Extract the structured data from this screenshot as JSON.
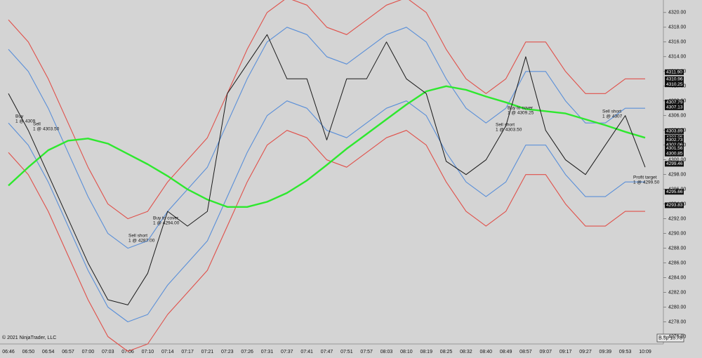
{
  "chart_data": {
    "type": "line",
    "categories": [
      "06:46",
      "06:50",
      "06:54",
      "06:57",
      "07:00",
      "07:03",
      "07:06",
      "07:10",
      "07:14",
      "07:17",
      "07:21",
      "07:23",
      "07:26",
      "07:31",
      "07:37",
      "07:41",
      "07:47",
      "07:51",
      "07:57",
      "08:03",
      "08:10",
      "08:19",
      "08:25",
      "08:32",
      "08:40",
      "08:49",
      "08:57",
      "09:07",
      "09:17",
      "09:27",
      "09:39",
      "09:53",
      "10:09"
    ],
    "series": [
      {
        "color": "#e0504a",
        "values": [
          4319,
          4316,
          4311,
          4305,
          4299,
          4294,
          4292,
          4293,
          4297,
          4300,
          4303,
          4309,
          4315,
          4320,
          4322,
          4321,
          4318,
          4317,
          4319,
          4321,
          4322,
          4320,
          4315,
          4311,
          4309,
          4311,
          4316,
          4316,
          4312,
          4309,
          4309,
          4311,
          4311
        ]
      },
      {
        "color": "#e0504a",
        "values": [
          4301,
          4298,
          4293,
          4287,
          4281,
          4276,
          4274,
          4275,
          4279,
          4282,
          4285,
          4291,
          4297,
          4302,
          4304,
          4303,
          4300,
          4299,
          4301,
          4303,
          4304,
          4302,
          4297,
          4293,
          4291,
          4293,
          4298,
          4298,
          4294,
          4291,
          4291,
          4293,
          4293
        ]
      },
      {
        "color": "#5a8fd8",
        "values": [
          4315,
          4312,
          4307,
          4301,
          4295,
          4290,
          4288,
          4289,
          4293,
          4296,
          4299,
          4305,
          4311,
          4316,
          4318,
          4317,
          4314,
          4313,
          4315,
          4317,
          4318,
          4316,
          4311,
          4307,
          4305,
          4307,
          4312,
          4312,
          4308,
          4305,
          4305,
          4307,
          4307
        ]
      },
      {
        "color": "#5a8fd8",
        "values": [
          4305,
          4302,
          4297,
          4291,
          4285,
          4280,
          4278,
          4279,
          4283,
          4286,
          4289,
          4295,
          4301,
          4306,
          4308,
          4307,
          4304,
          4303,
          4305,
          4307,
          4308,
          4306,
          4301,
          4297,
          4295,
          4297,
          4302,
          4302,
          4298,
          4295,
          4295,
          4297,
          4297
        ]
      },
      {
        "color": "#2ee82e",
        "values": [
          4296.5,
          4299,
          4301.3,
          4302.6,
          4302.9,
          4302.2,
          4300.8,
          4299.4,
          4297.8,
          4296,
          4294.6,
          4293.6,
          4293.6,
          4294.3,
          4295.5,
          4297.2,
          4299.3,
          4301.5,
          4303.5,
          4305.5,
          4307.5,
          4309.3,
          4310,
          4309.5,
          4308.6,
          4307.8,
          4306.9,
          4306.6,
          4306.3,
          4305.5,
          4304.7,
          4303.8,
          4303
        ]
      },
      {
        "color": "#1a1a1a",
        "values": [
          4309,
          4304,
          4298,
          4292,
          4286,
          4281,
          4280.3,
          4284.6,
          4293,
          4291,
          4293,
          4309,
          4313,
          4317,
          4311,
          4311,
          4302.7,
          4311,
          4311,
          4316,
          4311,
          4309,
          4299.8,
          4298,
          4300,
          4304.6,
          4314,
          4304,
          4300,
          4298,
          4302,
          4306,
          4299
        ]
      }
    ],
    "ylim": [
      4275,
      4321.7
    ],
    "yticks": [
      {
        "value": 4276,
        "label": "4276.00"
      },
      {
        "value": 4278,
        "label": "4278.00"
      },
      {
        "value": 4280,
        "label": "4280.00"
      },
      {
        "value": 4282,
        "label": "4282.00"
      },
      {
        "value": 4284,
        "label": "4284.00"
      },
      {
        "value": 4286,
        "label": "4286.00"
      },
      {
        "value": 4288,
        "label": "4288.00"
      },
      {
        "value": 4290,
        "label": "4290.00"
      },
      {
        "value": 4292,
        "label": "4292.00"
      },
      {
        "value": 4294,
        "label": "4294.00"
      },
      {
        "value": 4296,
        "label": "4296.00"
      },
      {
        "value": 4298,
        "label": "4298.00"
      },
      {
        "value": 4300,
        "label": "4300.00"
      },
      {
        "value": 4302,
        "label": "4302.00"
      },
      {
        "value": 4304,
        "label": "4304.00"
      },
      {
        "value": 4306,
        "label": "4306.00"
      },
      {
        "value": 4308,
        "label": "4308.00"
      },
      {
        "value": 4310,
        "label": "4310.00"
      },
      {
        "value": 4312,
        "label": "4312.00"
      },
      {
        "value": 4314,
        "label": "4314.00"
      },
      {
        "value": 4316,
        "label": "4316.00"
      },
      {
        "value": 4318,
        "label": "4318.00"
      },
      {
        "value": 4320,
        "label": "4320.00"
      }
    ],
    "price_markers": [
      {
        "value": 4311.9,
        "label": "4311.90"
      },
      {
        "value": 4310.96,
        "label": "4310.96"
      },
      {
        "value": 4310.25,
        "label": "4310.25"
      },
      {
        "value": 4307.79,
        "label": "4307.79"
      },
      {
        "value": 4307.13,
        "label": "4307.13"
      },
      {
        "value": 4303.89,
        "label": "4303.89"
      },
      {
        "value": 4303.05,
        "label": "4303.05"
      },
      {
        "value": 4302.73,
        "label": "4302.73"
      },
      {
        "value": 4302.06,
        "label": "4302.06"
      },
      {
        "value": 4301.56,
        "label": "4301.56"
      },
      {
        "value": 4300.85,
        "label": "4300.85"
      },
      {
        "value": 4299.46,
        "label": "4299.46"
      },
      {
        "value": 4295.66,
        "label": "4295.66"
      },
      {
        "value": 4293.83,
        "label": "4293.83"
      }
    ],
    "annotations": [
      [
        "Buy",
        "1 @ 4309"
      ],
      [
        "Sell",
        "1 @ 4303.50"
      ],
      [
        "Sell short",
        "1 @ 4287.00"
      ],
      [
        "Buy to cover",
        "1 @ 4294.00"
      ],
      [
        "Sell short",
        "1 @ 4303.50"
      ],
      [
        "Buy to cover",
        "1 @ 4309.25"
      ],
      [
        "Sell short",
        "1 @ 4307"
      ],
      [
        "Profit target",
        "1 @ 4299.50"
      ]
    ],
    "copyright": "© 2021 NinjaTrader, LLC",
    "status": "B.5p 15.78"
  }
}
